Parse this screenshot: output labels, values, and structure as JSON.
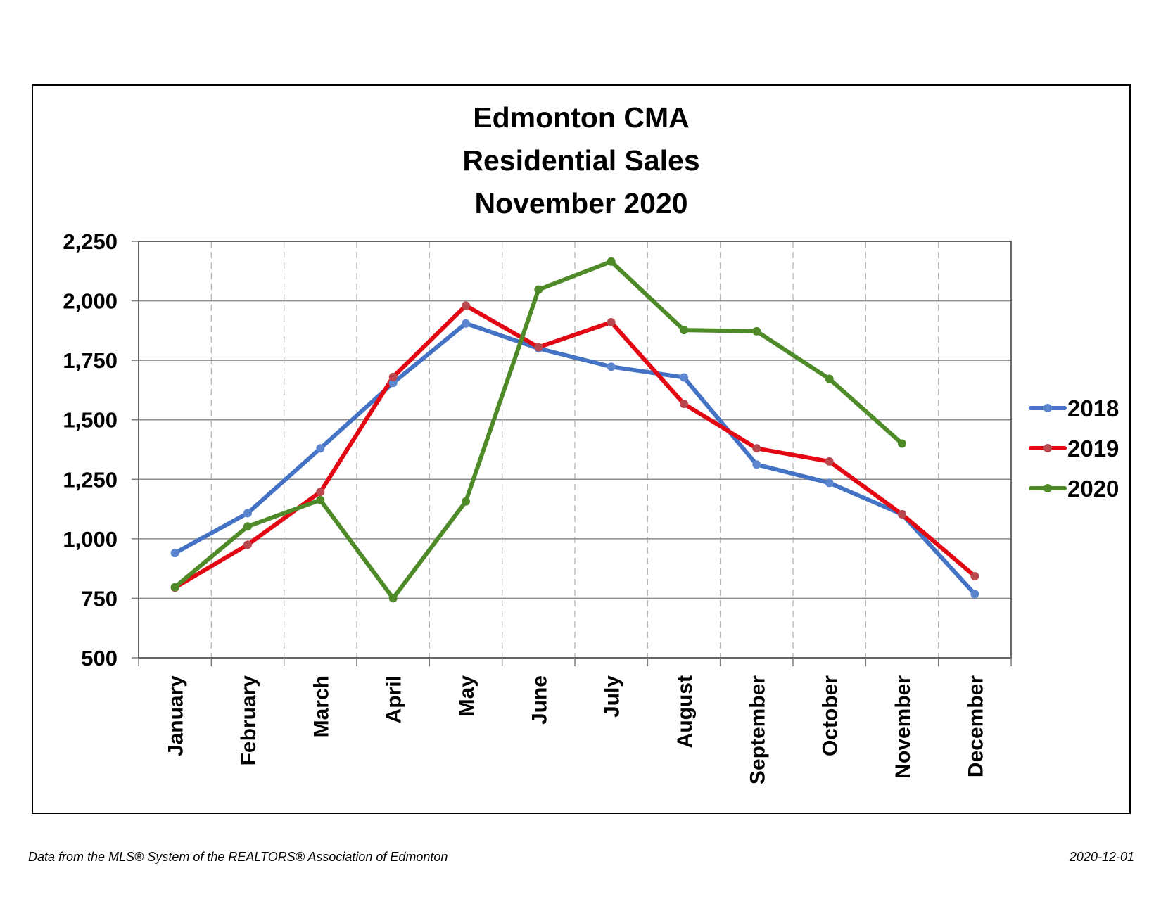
{
  "chart_data": {
    "type": "line",
    "title": [
      "Edmonton CMA",
      "Residential Sales",
      "November 2020"
    ],
    "xlabel": "",
    "ylabel": "",
    "categories": [
      "January",
      "February",
      "March",
      "April",
      "May",
      "June",
      "July",
      "August",
      "September",
      "October",
      "November",
      "December"
    ],
    "ylim": [
      500,
      2250
    ],
    "yticks": [
      500,
      750,
      1000,
      1250,
      1500,
      1750,
      2000,
      2250
    ],
    "ytick_labels": [
      "500",
      "750",
      "1,000",
      "1,250",
      "1,500",
      "1,750",
      "2,000",
      "2,250"
    ],
    "grid": {
      "horizontal": "solid",
      "vertical": "dashed"
    },
    "legend_position": "right",
    "series": [
      {
        "name": "2018",
        "color": "#4472C4",
        "values": [
          940,
          1108,
          1380,
          1655,
          1905,
          1800,
          1723,
          1678,
          1312,
          1235,
          1103,
          768
        ]
      },
      {
        "name": "2019",
        "color": "#E30613",
        "values": [
          795,
          975,
          1197,
          1680,
          1980,
          1805,
          1910,
          1567,
          1380,
          1325,
          1103,
          843
        ]
      },
      {
        "name": "2020",
        "color": "#4E8A28",
        "values": [
          797,
          1052,
          1163,
          750,
          1157,
          2047,
          2165,
          1877,
          1872,
          1672,
          1400,
          null
        ]
      }
    ]
  },
  "footer": {
    "source": "Data from the MLS® System of the REALTORS® Association of Edmonton",
    "date": "2020-12-01"
  }
}
